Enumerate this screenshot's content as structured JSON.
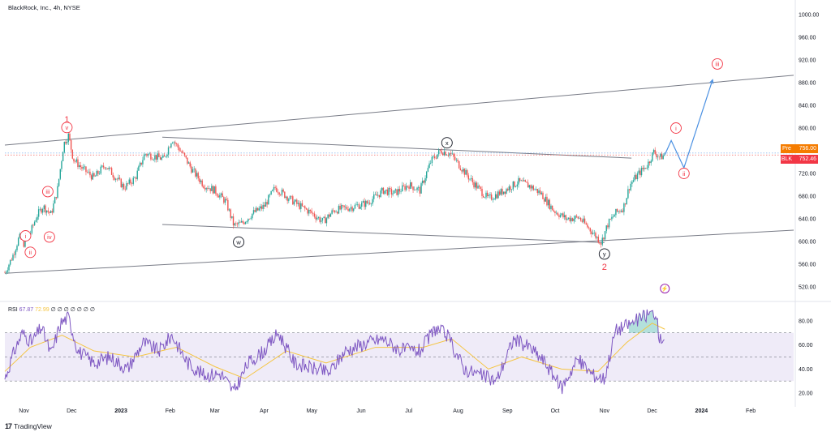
{
  "header": {
    "title": "BlackRock, Inc., 4h, NYSE"
  },
  "brand": {
    "name": "TradingView"
  },
  "price_tags": {
    "pre_label": "Pre",
    "pre_value": "756.00",
    "pre_color": "#f57c00",
    "last_label": "BLK",
    "last_value": "752.46",
    "last_color": "#f23645"
  },
  "rsi_header": {
    "label": "RSI",
    "value": "67.87",
    "ma_value": "72.99",
    "extras": "∅ ∅ ∅ ∅ ∅ ∅ ∅"
  },
  "colors": {
    "up": "#26a69a",
    "down": "#ef5350",
    "rsi": "#7e57c2",
    "rsi_ma": "#f5c542",
    "wave_red": "#f23645",
    "projection": "#4a90e2",
    "channel": "#787b86"
  },
  "chart_data": [
    {
      "type": "candlestick",
      "title": "BlackRock, Inc., 4h, NYSE",
      "x_axis": {
        "type": "date",
        "range": [
          "2022-10-20",
          "2024-02-28"
        ],
        "ticks": [
          {
            "date": "2022-11-01",
            "label": "Nov"
          },
          {
            "date": "2022-12-01",
            "label": "Dec"
          },
          {
            "date": "2023-01-01",
            "label": "2023"
          },
          {
            "date": "2023-02-01",
            "label": "Feb"
          },
          {
            "date": "2023-03-01",
            "label": "Mar"
          },
          {
            "date": "2023-04-01",
            "label": "Apr"
          },
          {
            "date": "2023-05-01",
            "label": "May"
          },
          {
            "date": "2023-06-01",
            "label": "Jun"
          },
          {
            "date": "2023-07-01",
            "label": "Jul"
          },
          {
            "date": "2023-08-01",
            "label": "Aug"
          },
          {
            "date": "2023-09-01",
            "label": "Sep"
          },
          {
            "date": "2023-10-01",
            "label": "Oct"
          },
          {
            "date": "2023-11-01",
            "label": "Nov"
          },
          {
            "date": "2023-12-01",
            "label": "Dec"
          },
          {
            "date": "2024-01-01",
            "label": "2024"
          },
          {
            "date": "2024-02-01",
            "label": "Feb"
          }
        ]
      },
      "y_axis": {
        "range": [
          500,
          1020
        ],
        "ticks": [
          520,
          560,
          600,
          640,
          680,
          720,
          760,
          800,
          840,
          880,
          920,
          960,
          1000
        ],
        "tick_labels": [
          "520.00",
          "560.00",
          "600.00",
          "640.00",
          "680.00",
          "720.00",
          "760.00",
          "800.00",
          "840.00",
          "880.00",
          "920.00",
          "960.00",
          "1000.00"
        ]
      },
      "path_points": [
        {
          "date": "2022-10-20",
          "close": 545
        },
        {
          "date": "2022-10-25",
          "close": 575
        },
        {
          "date": "2022-10-29",
          "close": 608
        },
        {
          "date": "2022-11-01",
          "close": 596
        },
        {
          "date": "2022-11-05",
          "close": 615
        },
        {
          "date": "2022-11-09",
          "close": 645
        },
        {
          "date": "2022-11-13",
          "close": 662
        },
        {
          "date": "2022-11-18",
          "close": 648
        },
        {
          "date": "2022-11-22",
          "close": 690
        },
        {
          "date": "2022-11-26",
          "close": 772
        },
        {
          "date": "2022-11-29",
          "close": 787
        },
        {
          "date": "2022-12-02",
          "close": 745
        },
        {
          "date": "2022-12-08",
          "close": 728
        },
        {
          "date": "2022-12-15",
          "close": 712
        },
        {
          "date": "2022-12-22",
          "close": 735
        },
        {
          "date": "2023-01-03",
          "close": 695
        },
        {
          "date": "2023-01-10",
          "close": 712
        },
        {
          "date": "2023-01-16",
          "close": 755
        },
        {
          "date": "2023-01-22",
          "close": 750
        },
        {
          "date": "2023-01-28",
          "close": 745
        },
        {
          "date": "2023-02-02",
          "close": 781
        },
        {
          "date": "2023-02-08",
          "close": 758
        },
        {
          "date": "2023-02-15",
          "close": 725
        },
        {
          "date": "2023-02-22",
          "close": 700
        },
        {
          "date": "2023-03-01",
          "close": 690
        },
        {
          "date": "2023-03-08",
          "close": 670
        },
        {
          "date": "2023-03-13",
          "close": 628
        },
        {
          "date": "2023-03-18",
          "close": 632
        },
        {
          "date": "2023-03-25",
          "close": 650
        },
        {
          "date": "2023-04-01",
          "close": 662
        },
        {
          "date": "2023-04-08",
          "close": 695
        },
        {
          "date": "2023-04-15",
          "close": 680
        },
        {
          "date": "2023-04-22",
          "close": 665
        },
        {
          "date": "2023-05-01",
          "close": 650
        },
        {
          "date": "2023-05-08",
          "close": 635
        },
        {
          "date": "2023-05-15",
          "close": 655
        },
        {
          "date": "2023-05-25",
          "close": 660
        },
        {
          "date": "2023-06-05",
          "close": 668
        },
        {
          "date": "2023-06-15",
          "close": 690
        },
        {
          "date": "2023-06-22",
          "close": 685
        },
        {
          "date": "2023-07-01",
          "close": 700
        },
        {
          "date": "2023-07-08",
          "close": 690
        },
        {
          "date": "2023-07-15",
          "close": 742
        },
        {
          "date": "2023-07-21",
          "close": 760
        },
        {
          "date": "2023-07-27",
          "close": 755
        },
        {
          "date": "2023-08-03",
          "close": 730
        },
        {
          "date": "2023-08-10",
          "close": 705
        },
        {
          "date": "2023-08-20",
          "close": 675
        },
        {
          "date": "2023-08-30",
          "close": 690
        },
        {
          "date": "2023-09-08",
          "close": 705
        },
        {
          "date": "2023-09-15",
          "close": 698
        },
        {
          "date": "2023-09-22",
          "close": 685
        },
        {
          "date": "2023-09-30",
          "close": 655
        },
        {
          "date": "2023-10-08",
          "close": 640
        },
        {
          "date": "2023-10-16",
          "close": 642
        },
        {
          "date": "2023-10-24",
          "close": 618
        },
        {
          "date": "2023-10-30",
          "close": 598
        },
        {
          "date": "2023-11-03",
          "close": 630
        },
        {
          "date": "2023-11-08",
          "close": 650
        },
        {
          "date": "2023-11-13",
          "close": 660
        },
        {
          "date": "2023-11-17",
          "close": 700
        },
        {
          "date": "2023-11-22",
          "close": 718
        },
        {
          "date": "2023-11-28",
          "close": 735
        },
        {
          "date": "2023-12-02",
          "close": 758
        },
        {
          "date": "2023-12-06",
          "close": 748
        },
        {
          "date": "2023-12-09",
          "close": 753
        }
      ],
      "channel_lines": [
        {
          "from": {
            "date": "2022-10-20",
            "price": 770
          },
          "to": {
            "date": "2024-02-28",
            "price": 893
          }
        },
        {
          "from": {
            "date": "2022-10-20",
            "price": 544
          },
          "to": {
            "date": "2024-02-28",
            "price": 620
          }
        },
        {
          "from": {
            "date": "2023-01-27",
            "price": 784
          },
          "to": {
            "date": "2023-11-18",
            "price": 747
          }
        },
        {
          "from": {
            "date": "2023-01-27",
            "price": 630
          },
          "to": {
            "date": "2023-11-01",
            "price": 598
          }
        }
      ],
      "projection": [
        {
          "date": "2023-12-09",
          "price": 753
        },
        {
          "date": "2023-12-13",
          "price": 778
        },
        {
          "date": "2023-12-21",
          "price": 730
        },
        {
          "date": "2024-01-08",
          "price": 885
        }
      ],
      "reference_lines": [
        {
          "price": 756.0,
          "label": "Pre"
        },
        {
          "price": 752.46,
          "label": "BLK"
        }
      ],
      "wave_labels": [
        {
          "text": "1",
          "date": "2022-11-28",
          "price": 816,
          "style": "plain",
          "color": "red"
        },
        {
          "text": "v",
          "date": "2022-11-28",
          "price": 801,
          "style": "circle",
          "color": "red"
        },
        {
          "text": "iii",
          "date": "2022-11-16",
          "price": 688,
          "style": "circle",
          "color": "red"
        },
        {
          "text": "iv",
          "date": "2022-11-17",
          "price": 608,
          "style": "circle",
          "color": "red"
        },
        {
          "text": "i",
          "date": "2022-11-02",
          "price": 610,
          "style": "circle",
          "color": "red"
        },
        {
          "text": "ii",
          "date": "2022-11-05",
          "price": 581,
          "style": "circle",
          "color": "red"
        },
        {
          "text": "x",
          "date": "2023-07-25",
          "price": 774,
          "style": "circle",
          "color": "black"
        },
        {
          "text": "w",
          "date": "2023-03-16",
          "price": 599,
          "style": "circle",
          "color": "black"
        },
        {
          "text": "y",
          "date": "2023-11-01",
          "price": 578,
          "style": "circle",
          "color": "black"
        },
        {
          "text": "2",
          "date": "2023-11-01",
          "price": 556,
          "style": "plain",
          "color": "red"
        },
        {
          "text": "i",
          "date": "2023-12-16",
          "price": 800,
          "style": "circle",
          "color": "red"
        },
        {
          "text": "ii",
          "date": "2023-12-21",
          "price": 720,
          "style": "circle",
          "color": "red"
        },
        {
          "text": "iii",
          "date": "2024-01-11",
          "price": 913,
          "style": "circle",
          "color": "red"
        }
      ]
    },
    {
      "type": "line",
      "title": "RSI",
      "y_axis": {
        "range": [
          14,
          92
        ],
        "ticks": [
          20,
          40,
          60,
          80
        ],
        "tick_labels": [
          "20.00",
          "40.00",
          "60.00",
          "80.00"
        ]
      },
      "bands": {
        "upper": 70,
        "middle": 50,
        "lower": 30
      },
      "series": [
        {
          "name": "RSI",
          "points": [
            {
              "date": "2022-10-20",
              "value": 32
            },
            {
              "date": "2022-10-26",
              "value": 55
            },
            {
              "date": "2022-10-31",
              "value": 70
            },
            {
              "date": "2022-11-06",
              "value": 62
            },
            {
              "date": "2022-11-12",
              "value": 75
            },
            {
              "date": "2022-11-18",
              "value": 52
            },
            {
              "date": "2022-11-24",
              "value": 78
            },
            {
              "date": "2022-11-29",
              "value": 83
            },
            {
              "date": "2022-12-05",
              "value": 55
            },
            {
              "date": "2022-12-15",
              "value": 45
            },
            {
              "date": "2022-12-25",
              "value": 50
            },
            {
              "date": "2023-01-05",
              "value": 40
            },
            {
              "date": "2023-01-15",
              "value": 62
            },
            {
              "date": "2023-01-25",
              "value": 55
            },
            {
              "date": "2023-02-02",
              "value": 68
            },
            {
              "date": "2023-02-12",
              "value": 45
            },
            {
              "date": "2023-02-22",
              "value": 35
            },
            {
              "date": "2023-03-05",
              "value": 36
            },
            {
              "date": "2023-03-13",
              "value": 21
            },
            {
              "date": "2023-03-22",
              "value": 45
            },
            {
              "date": "2023-04-01",
              "value": 55
            },
            {
              "date": "2023-04-10",
              "value": 70
            },
            {
              "date": "2023-04-20",
              "value": 45
            },
            {
              "date": "2023-05-03",
              "value": 40
            },
            {
              "date": "2023-05-12",
              "value": 37
            },
            {
              "date": "2023-05-22",
              "value": 55
            },
            {
              "date": "2023-06-05",
              "value": 62
            },
            {
              "date": "2023-06-15",
              "value": 65
            },
            {
              "date": "2023-06-25",
              "value": 56
            },
            {
              "date": "2023-07-08",
              "value": 55
            },
            {
              "date": "2023-07-18",
              "value": 74
            },
            {
              "date": "2023-07-25",
              "value": 68
            },
            {
              "date": "2023-08-05",
              "value": 40
            },
            {
              "date": "2023-08-15",
              "value": 35
            },
            {
              "date": "2023-08-25",
              "value": 30
            },
            {
              "date": "2023-09-05",
              "value": 65
            },
            {
              "date": "2023-09-15",
              "value": 58
            },
            {
              "date": "2023-09-25",
              "value": 45
            },
            {
              "date": "2023-10-05",
              "value": 24
            },
            {
              "date": "2023-10-15",
              "value": 48
            },
            {
              "date": "2023-10-25",
              "value": 35
            },
            {
              "date": "2023-11-01",
              "value": 32
            },
            {
              "date": "2023-11-08",
              "value": 72
            },
            {
              "date": "2023-11-18",
              "value": 78
            },
            {
              "date": "2023-11-28",
              "value": 85
            },
            {
              "date": "2023-12-03",
              "value": 87
            },
            {
              "date": "2023-12-06",
              "value": 64
            },
            {
              "date": "2023-12-09",
              "value": 68
            }
          ]
        },
        {
          "name": "RSI MA",
          "points": [
            {
              "date": "2022-10-20",
              "value": 38
            },
            {
              "date": "2022-11-05",
              "value": 58
            },
            {
              "date": "2022-11-25",
              "value": 68
            },
            {
              "date": "2022-12-15",
              "value": 55
            },
            {
              "date": "2023-01-10",
              "value": 50
            },
            {
              "date": "2023-02-05",
              "value": 58
            },
            {
              "date": "2023-03-01",
              "value": 42
            },
            {
              "date": "2023-03-20",
              "value": 32
            },
            {
              "date": "2023-04-15",
              "value": 55
            },
            {
              "date": "2023-05-10",
              "value": 45
            },
            {
              "date": "2023-06-10",
              "value": 58
            },
            {
              "date": "2023-07-10",
              "value": 58
            },
            {
              "date": "2023-07-28",
              "value": 65
            },
            {
              "date": "2023-08-20",
              "value": 40
            },
            {
              "date": "2023-09-10",
              "value": 50
            },
            {
              "date": "2023-10-05",
              "value": 40
            },
            {
              "date": "2023-10-28",
              "value": 38
            },
            {
              "date": "2023-11-15",
              "value": 62
            },
            {
              "date": "2023-12-01",
              "value": 78
            },
            {
              "date": "2023-12-09",
              "value": 73
            }
          ]
        }
      ]
    }
  ]
}
